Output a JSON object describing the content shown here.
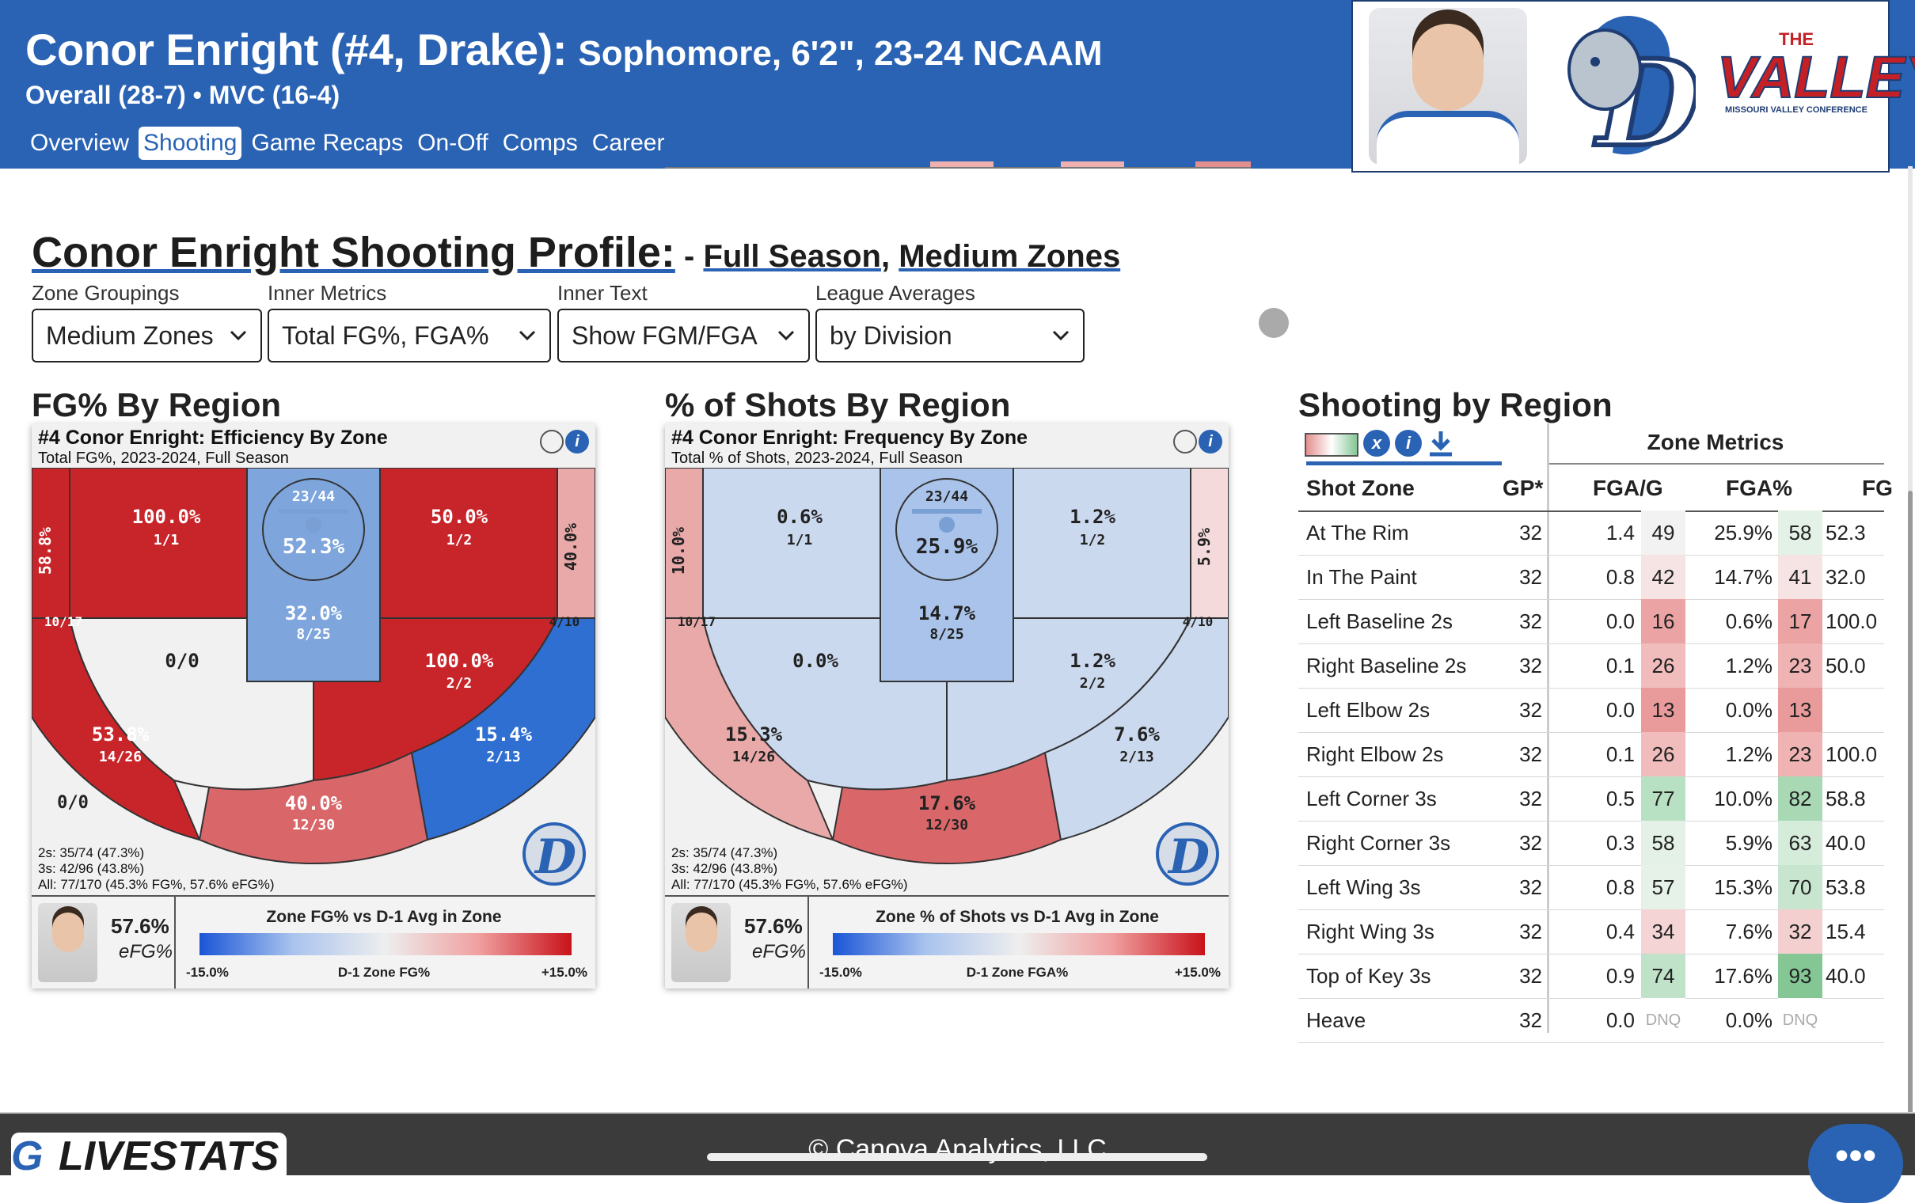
{
  "header": {
    "title": "Conor Enright (#4, Drake):",
    "subtitle": "Sophomore, 6'2\", 23-24 NCAAM",
    "record": "Overall (28-7) • MVC (16-4)",
    "nav": [
      "Overview",
      "Shooting",
      "Game Recaps",
      "On-Off",
      "Comps",
      "Career"
    ],
    "active_nav": "Shooting",
    "valley_the": "THE",
    "valley_word": "VALLEY",
    "valley_sub": "MISSOURI VALLEY CONFERENCE"
  },
  "profile": {
    "title": "Conor Enright Shooting Profile:",
    "sep": " - ",
    "season": "Full Season",
    "comma": ", ",
    "zones": "Medium Zones"
  },
  "dropdowns": [
    {
      "label": "Zone Groupings",
      "value": "Medium Zones"
    },
    {
      "label": "Inner Metrics",
      "value": "Total FG%, FGA%"
    },
    {
      "label": "Inner Text",
      "value": "Show FGM/FGA"
    },
    {
      "label": "League Averages",
      "value": "by Division"
    }
  ],
  "sections": {
    "fg": "FG% By Region",
    "shots": "% of Shots By Region",
    "table": "Shooting by Region"
  },
  "colors": {
    "header_blue": "#2a63b4",
    "hot_red": "#c8252a",
    "mid_red": "#d9676a",
    "light_red": "#e9a9a9",
    "cool_blue": "#2f6fd1",
    "light_blue": "#a9c3ea",
    "pale_blue": "#cbd9ee",
    "neutral": "#f1f1f1"
  },
  "fg_card": {
    "title": "#4 Conor Enright: Efficiency By Zone",
    "subtitle": "Total FG%, 2023-2024, Full Season",
    "zones": {
      "left_corner": {
        "pct": "58.8%",
        "frac": "10/17"
      },
      "right_corner": {
        "pct": "40.0%",
        "frac": "4/10"
      },
      "left_baseline": {
        "pct": "100.0%",
        "frac": "1/1"
      },
      "right_baseline": {
        "pct": "50.0%",
        "frac": "1/2"
      },
      "rim": {
        "frac": "23/44",
        "pct": "52.3%"
      },
      "paint": {
        "pct": "32.0%",
        "frac": "8/25"
      },
      "left_elbow": {
        "frac": "0/0"
      },
      "right_elbow": {
        "pct": "100.0%",
        "frac": "2/2"
      },
      "left_wing": {
        "pct": "53.8%",
        "frac": "14/26"
      },
      "right_wing": {
        "pct": "15.4%",
        "frac": "2/13"
      },
      "top_key": {
        "pct": "40.0%",
        "frac": "12/30"
      },
      "heave": {
        "frac": "0/0"
      }
    },
    "totals": [
      "2s: 35/74 (47.3%)",
      "3s: 42/96 (43.8%)",
      "All: 77/170 (45.3% FG%, 57.6% eFG%)"
    ],
    "efg": "57.6%",
    "efg_label": "eFG%",
    "legend_title": "Zone FG% vs D-1 Avg in Zone",
    "legend_min": "-15.0%",
    "legend_mid": "D-1 Zone FG%",
    "legend_max": "+15.0%"
  },
  "shots_card": {
    "title": "#4 Conor Enright: Frequency By Zone",
    "subtitle": "Total % of Shots, 2023-2024, Full Season",
    "zones": {
      "left_corner": {
        "pct": "10.0%",
        "frac": "10/17"
      },
      "right_corner": {
        "pct": "5.9%",
        "frac": "4/10"
      },
      "left_baseline": {
        "pct": "0.6%",
        "frac": "1/1"
      },
      "right_baseline": {
        "pct": "1.2%",
        "frac": "1/2"
      },
      "rim": {
        "frac": "23/44",
        "pct": "25.9%"
      },
      "paint": {
        "pct": "14.7%",
        "frac": "8/25"
      },
      "left_elbow": {
        "pct": "0.0%"
      },
      "right_elbow": {
        "pct": "1.2%",
        "frac": "2/2"
      },
      "left_wing": {
        "pct": "15.3%",
        "frac": "14/26"
      },
      "right_wing": {
        "pct": "7.6%",
        "frac": "2/13"
      },
      "top_key": {
        "pct": "17.6%",
        "frac": "12/30"
      }
    },
    "totals": [
      "2s: 35/74 (47.3%)",
      "3s: 42/96 (43.8%)",
      "All: 77/170 (45.3% FG%, 57.6% eFG%)"
    ],
    "efg": "57.6%",
    "efg_label": "eFG%",
    "legend_title": "Zone % of Shots vs D-1 Avg in Zone",
    "legend_min": "-15.0%",
    "legend_mid": "D-1 Zone FGA%",
    "legend_max": "+15.0%"
  },
  "table": {
    "group_header": "Zone Metrics",
    "columns": [
      "Shot Zone",
      "GP*",
      "FGA/G",
      "FGA%",
      "FG"
    ],
    "rows": [
      {
        "zone": "At The Rim",
        "gp": "32",
        "fgag": "1.4",
        "r1": "49",
        "c1": "#f2f2f2",
        "fgap": "25.9%",
        "r2": "58",
        "c2": "#e3f1e6",
        "fg": "52.3"
      },
      {
        "zone": "In The Paint",
        "gp": "32",
        "fgag": "0.8",
        "r1": "42",
        "c1": "#f6e4e4",
        "fgap": "14.7%",
        "r2": "41",
        "c2": "#f6e4e4",
        "fg": "32.0"
      },
      {
        "zone": "Left Baseline 2s",
        "gp": "32",
        "fgag": "0.0",
        "r1": "16",
        "c1": "#eba3a3",
        "fgap": "0.6%",
        "r2": "17",
        "c2": "#eba3a3",
        "fg": "100.0"
      },
      {
        "zone": "Right Baseline 2s",
        "gp": "32",
        "fgag": "0.1",
        "r1": "26",
        "c1": "#f0bcbc",
        "fgap": "1.2%",
        "r2": "23",
        "c2": "#efb3b3",
        "fg": "50.0"
      },
      {
        "zone": "Left Elbow 2s",
        "gp": "32",
        "fgag": "0.0",
        "r1": "13",
        "c1": "#e99a9a",
        "fgap": "0.0%",
        "r2": "13",
        "c2": "#e99a9a",
        "fg": ""
      },
      {
        "zone": "Right Elbow 2s",
        "gp": "32",
        "fgag": "0.1",
        "r1": "26",
        "c1": "#f0bcbc",
        "fgap": "1.2%",
        "r2": "23",
        "c2": "#efb3b3",
        "fg": "100.0"
      },
      {
        "zone": "Left Corner 3s",
        "gp": "32",
        "fgag": "0.5",
        "r1": "77",
        "c1": "#b8e0c2",
        "fgap": "10.0%",
        "r2": "82",
        "c2": "#a8d9b4",
        "fg": "58.8"
      },
      {
        "zone": "Right Corner 3s",
        "gp": "32",
        "fgag": "0.3",
        "r1": "58",
        "c1": "#e3f1e6",
        "fgap": "5.9%",
        "r2": "63",
        "c2": "#d6ecdb",
        "fg": "40.0"
      },
      {
        "zone": "Left Wing 3s",
        "gp": "32",
        "fgag": "0.8",
        "r1": "57",
        "c1": "#e6f2e8",
        "fgap": "15.3%",
        "r2": "70",
        "c2": "#c8e6cf",
        "fg": "53.8"
      },
      {
        "zone": "Right Wing 3s",
        "gp": "32",
        "fgag": "0.4",
        "r1": "34",
        "c1": "#f4d4d4",
        "fgap": "7.6%",
        "r2": "32",
        "c2": "#f3cfcf",
        "fg": "15.4"
      },
      {
        "zone": "Top of Key 3s",
        "gp": "32",
        "fgag": "0.9",
        "r1": "74",
        "c1": "#bfe2c8",
        "fgap": "17.6%",
        "r2": "93",
        "c2": "#84c795",
        "fg": "40.0"
      },
      {
        "zone": "Heave",
        "gp": "32",
        "fgag": "0.0",
        "r1": "DNQ",
        "c1": "#ffffff",
        "fgap": "0.0%",
        "r2": "DNQ",
        "c2": "#ffffff",
        "fg": ""
      }
    ]
  },
  "footer": {
    "brand": "LIVESTATS",
    "copyright": "© Canova Analytics, LLC",
    "chat": "•••"
  }
}
